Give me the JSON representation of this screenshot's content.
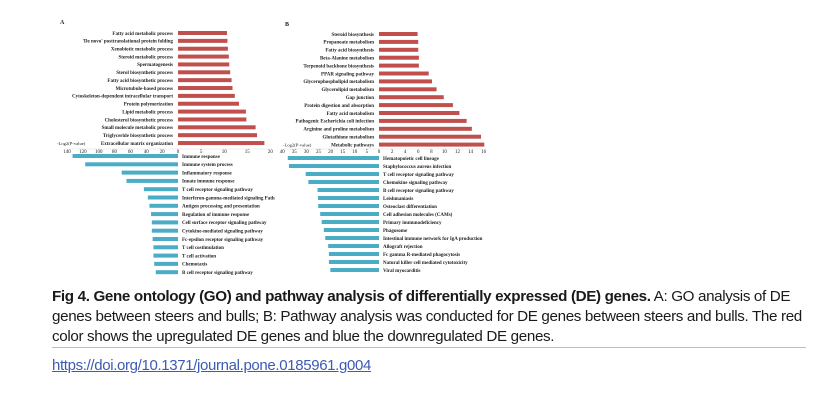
{
  "colors": {
    "up": "#c0504d",
    "down": "#4bacc6",
    "link": "#3b5bb5"
  },
  "chart_data": [
    {
      "type": "bar",
      "panel": "A",
      "title": "A",
      "xlabel": "-Log2(P-value)",
      "orientation": "horizontal-diverging",
      "up_ticks": [
        0,
        5,
        10,
        15,
        20
      ],
      "down_ticks": [
        140,
        120,
        100,
        80,
        60,
        40,
        20
      ],
      "up_xlim": [
        0,
        20
      ],
      "down_xlim": [
        0,
        140
      ],
      "up_series": {
        "name": "Upregulated",
        "categories": [
          "Fatty acid metabolic process",
          "'De novo' posttranslational protein folding",
          "Xenobiotic metabolic process",
          "Steroid metabolic process",
          "Spermatogenesis",
          "Sterol biosynthetic process",
          "Fatty acid biosynthetic process",
          "Microtubule-based process",
          "Cytoskeleton-dependent intracellular transport",
          "Protein polymerization",
          "Lipid metabolic process",
          "Cholesterol biosynthetic process",
          "Small molecule metabolic process",
          "Triglyceride biosynthetic process",
          "Extracellular matrix organization"
        ],
        "values": [
          10.6,
          10.7,
          10.8,
          11.0,
          11.1,
          11.3,
          11.6,
          11.8,
          12.3,
          13.2,
          14.7,
          14.8,
          16.8,
          17.1,
          18.7
        ]
      },
      "down_series": {
        "name": "Downregulated",
        "categories": [
          "Immune response",
          "Immune system process",
          "Inflammatory response",
          "Innate immune response",
          "T cell receptor signaling pathway",
          "Interferon-gamma-mediated signaling Path",
          "Antigen processing and presentation",
          "Regulation of immune response",
          "Cell surface receptor signaling pathway",
          "Cytokine-mediated signaling pathway",
          "Fc-epsilon receptor signaling pathway",
          "T cell costimulation",
          "T cell activation",
          "Chemotaxis",
          "B cell receptor signaling pathway"
        ],
        "values": [
          133,
          117,
          71,
          65,
          43,
          38,
          36,
          34,
          33,
          33,
          32,
          31,
          31,
          30,
          28
        ]
      }
    },
    {
      "type": "bar",
      "panel": "B",
      "title": "B",
      "xlabel": "-Log2(P-value)",
      "orientation": "horizontal-diverging",
      "up_ticks": [
        0,
        2,
        4,
        6,
        8,
        10,
        12,
        14,
        16
      ],
      "down_ticks": [
        40,
        35,
        30,
        25,
        20,
        15,
        10,
        5
      ],
      "up_xlim": [
        0,
        16
      ],
      "down_xlim": [
        0,
        40
      ],
      "up_series": {
        "name": "Upregulated",
        "categories": [
          "Steroid biosynthesis",
          "Propanoate metabolism",
          "Fatty acid biosynthesis",
          "Beta-Alanine metabolism",
          "Terpenoid backbone biosynthesis",
          "PPAR signaling pathway",
          "Glycerophospholipid metabolism",
          "Glycerolipid metabolism",
          "Gap junction",
          "Protein digestion and absorption",
          "Fatty acid metabolism",
          "Pathogenic Escherichia coli infection",
          "Arginine and proline metabolism",
          "Glutathione metabolism",
          "Metabolic pathways"
        ],
        "values": [
          5.9,
          6.0,
          6.0,
          6.1,
          6.1,
          7.6,
          8.1,
          8.8,
          9.9,
          11.3,
          12.3,
          13.4,
          14.2,
          15.6,
          16.1
        ]
      },
      "down_series": {
        "name": "Downregulated",
        "categories": [
          "Hematopoietic cell lineage",
          "Staphylococcus aureus infection",
          "T cell receptor signaling pathway",
          "Chemokine signaling pathway",
          "B cell receptor signaling pathway",
          "Leishmaniasis",
          "Osteoclast differentiation",
          "Cell adhesion molecules (CAMs)",
          "Primary immunodeficiency",
          "Phagosome",
          "Intestinal immune network for IgA production",
          "Allograft rejection",
          "Fc gamma R-mediated phagocytosis",
          "Natural killer cell mediated cytotoxicity",
          "Viral myocarditis"
        ],
        "values": [
          37.7,
          37.2,
          30.3,
          29.2,
          25.4,
          25.2,
          25.1,
          24.3,
          23.7,
          22.8,
          22.2,
          21.0,
          20.7,
          20.7,
          20.1
        ]
      }
    }
  ],
  "caption": {
    "label": "Fig 4.",
    "title": "Gene ontology (GO) and pathway analysis of differentially expressed (DE) genes.",
    "text": "A: GO analysis of DE genes between steers and bulls; B: Pathway analysis was conducted for DE genes between steers and bulls. The red color shows the upregulated DE genes and blue the downregulated DE genes."
  },
  "doi_link": "https://doi.org/10.1371/journal.pone.0185961.g004"
}
